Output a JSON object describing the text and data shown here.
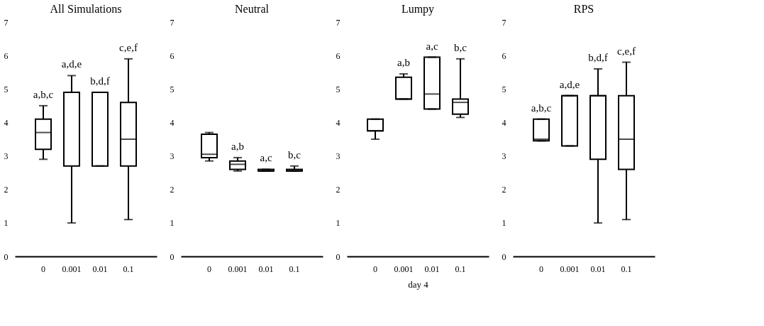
{
  "chart_data": [
    {
      "type": "box",
      "title": "All Simulations",
      "categories": [
        "0",
        "0.001",
        "0.01",
        "0.1"
      ],
      "ylim": [
        0,
        7
      ],
      "yticks": [
        0,
        1,
        2,
        3,
        4,
        5,
        6,
        7
      ],
      "boxes": [
        {
          "low": 2.9,
          "q1": 3.2,
          "median": 3.7,
          "q3": 4.1,
          "high": 4.5
        },
        {
          "low": 1.0,
          "q1": 2.7,
          "median": 4.9,
          "q3": 4.9,
          "high": 5.4
        },
        {
          "low": 2.7,
          "q1": 2.7,
          "median": 4.9,
          "q3": 4.9,
          "high": 4.9
        },
        {
          "low": 1.1,
          "q1": 2.7,
          "median": 3.5,
          "q3": 4.6,
          "high": 5.9
        }
      ],
      "annotations": [
        "a,b,c",
        "a,d,e",
        "b,d,f",
        "c,e,f"
      ]
    },
    {
      "type": "box",
      "title": "Neutral",
      "categories": [
        "0",
        "0.001",
        "0.01",
        "0.1"
      ],
      "ylim": [
        0,
        7
      ],
      "yticks": [
        0,
        1,
        2,
        3,
        4,
        5,
        6,
        7
      ],
      "boxes": [
        {
          "low": 2.85,
          "q1": 2.95,
          "median": 3.05,
          "q3": 3.65,
          "high": 3.7
        },
        {
          "low": 2.55,
          "q1": 2.6,
          "median": 2.75,
          "q3": 2.85,
          "high": 2.95
        },
        {
          "low": 2.55,
          "q1": 2.55,
          "median": 2.55,
          "q3": 2.6,
          "high": 2.6
        },
        {
          "low": 2.55,
          "q1": 2.55,
          "median": 2.55,
          "q3": 2.6,
          "high": 2.7
        }
      ],
      "annotations": [
        "a,b",
        "a,c",
        "b,c"
      ]
    },
    {
      "type": "box",
      "title": "Lumpy",
      "xlabel": "day 4",
      "categories": [
        "0",
        "0.001",
        "0.01",
        "0.1"
      ],
      "ylim": [
        0,
        7
      ],
      "yticks": [
        0,
        1,
        2,
        3,
        4,
        5,
        6,
        7
      ],
      "boxes": [
        {
          "low": 3.5,
          "q1": 3.75,
          "median": 3.75,
          "q3": 4.1,
          "high": 4.1
        },
        {
          "low": 4.7,
          "q1": 4.7,
          "median": 4.7,
          "q3": 5.35,
          "high": 5.45
        },
        {
          "low": 4.4,
          "q1": 4.4,
          "median": 4.85,
          "q3": 5.95,
          "high": 5.95
        },
        {
          "low": 4.15,
          "q1": 4.25,
          "median": 4.6,
          "q3": 4.7,
          "high": 5.9
        }
      ],
      "annotations": [
        "a,b",
        "a,c",
        "b,c"
      ]
    },
    {
      "type": "box",
      "title": "RPS",
      "categories": [
        "0",
        "0.001",
        "0.01",
        "0.1"
      ],
      "ylim": [
        0,
        7
      ],
      "yticks": [
        0,
        1,
        2,
        3,
        4,
        5,
        6,
        7
      ],
      "boxes": [
        {
          "low": 3.45,
          "q1": 3.45,
          "median": 3.5,
          "q3": 4.1,
          "high": 4.1
        },
        {
          "low": 3.3,
          "q1": 3.3,
          "median": 4.8,
          "q3": 4.8,
          "high": 4.8
        },
        {
          "low": 1.0,
          "q1": 2.9,
          "median": 4.8,
          "q3": 4.8,
          "high": 5.6
        },
        {
          "low": 1.1,
          "q1": 2.6,
          "median": 3.5,
          "q3": 4.8,
          "high": 5.8
        }
      ],
      "annotations": [
        "a,b,c",
        "a,d,e",
        "b,d,f",
        "c,e,f"
      ]
    }
  ]
}
